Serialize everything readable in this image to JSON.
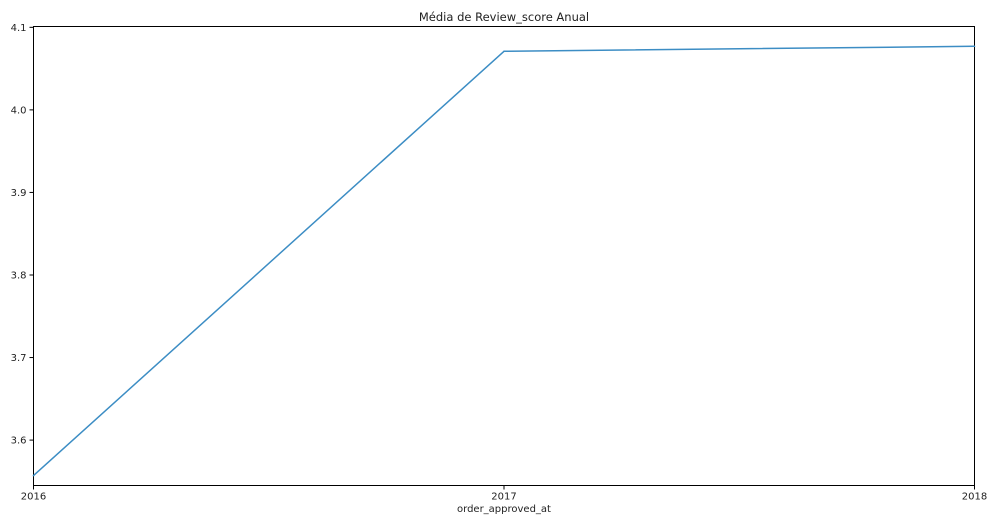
{
  "chart_data": {
    "type": "line",
    "title": "Média de Review_score Anual",
    "xlabel": "order_approved_at",
    "ylabel": "",
    "x": [
      2016,
      2017,
      2018
    ],
    "x_tick_labels": [
      "2016",
      "2017",
      "2018"
    ],
    "xlim": [
      2016,
      2018
    ],
    "ylim": [
      3.545,
      4.101
    ],
    "y_ticks": [
      3.6,
      3.7,
      3.8,
      3.9,
      4.0,
      4.1
    ],
    "y_tick_labels": [
      "3.6",
      "3.7",
      "3.8",
      "3.9",
      "4.0",
      "4.1"
    ],
    "grid": false,
    "legend": "none",
    "series": [
      {
        "values": [
          3.557,
          4.071,
          4.077
        ],
        "color": "#3c8dc4"
      }
    ]
  }
}
